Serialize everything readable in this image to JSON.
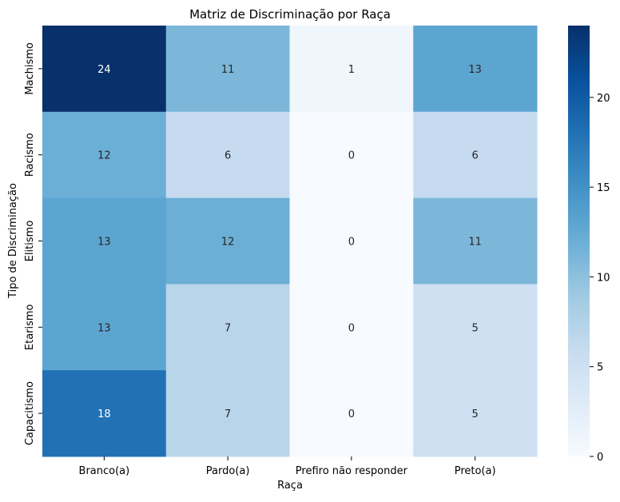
{
  "chart_data": {
    "type": "heatmap",
    "title": "Matriz de Discriminação por Raça",
    "xlabel": "Raça",
    "ylabel": "Tipo de Discriminação",
    "x_categories": [
      "Branco(a)",
      "Pardo(a)",
      "Prefiro não responder",
      "Preto(a)"
    ],
    "y_categories": [
      "Machismo",
      "Racismo",
      "Elitismo",
      "Etarismo",
      "Capacitismo"
    ],
    "values": [
      [
        24,
        11,
        1,
        13
      ],
      [
        12,
        6,
        0,
        6
      ],
      [
        13,
        12,
        0,
        11
      ],
      [
        13,
        7,
        0,
        5
      ],
      [
        18,
        7,
        0,
        5
      ]
    ],
    "colormap": "Blues",
    "vmin": 0,
    "vmax": 24,
    "colorbar_ticks": [
      0,
      5,
      10,
      15,
      20
    ],
    "annotated": true
  }
}
